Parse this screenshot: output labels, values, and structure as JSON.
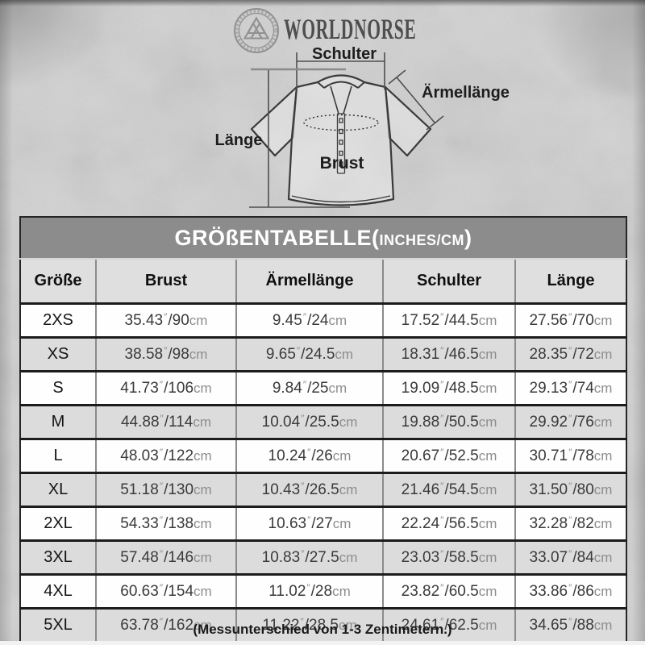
{
  "brand": {
    "name": "WORLDNORSE",
    "logo_icon": "valknut-ring-icon"
  },
  "diagram": {
    "schulter_label": "Schulter",
    "aermellaenge_label": "Ärmellänge",
    "laenge_label": "Länge",
    "brust_label": "Brust"
  },
  "table": {
    "title": {
      "main": "GRÖßENTABELLE",
      "open_paren": "(",
      "units": "INCHES/CM",
      "close_paren": ")"
    },
    "columns": [
      "Größe",
      "Brust",
      "Ärmellänge",
      "Schulter",
      "Länge"
    ],
    "inch_mark": "″",
    "cm_suffix": "cm",
    "rows": [
      {
        "size": "2XS",
        "measurements": [
          {
            "in": "35.43",
            "cm": "90"
          },
          {
            "in": "9.45",
            "cm": "24"
          },
          {
            "in": "17.52",
            "cm": "44.5"
          },
          {
            "in": "27.56",
            "cm": "70"
          }
        ]
      },
      {
        "size": "XS",
        "measurements": [
          {
            "in": "38.58",
            "cm": "98"
          },
          {
            "in": "9.65",
            "cm": "24.5"
          },
          {
            "in": "18.31",
            "cm": "46.5"
          },
          {
            "in": "28.35",
            "cm": "72"
          }
        ]
      },
      {
        "size": "S",
        "measurements": [
          {
            "in": "41.73",
            "cm": "106"
          },
          {
            "in": "9.84",
            "cm": "25"
          },
          {
            "in": "19.09",
            "cm": "48.5"
          },
          {
            "in": "29.13",
            "cm": "74"
          }
        ]
      },
      {
        "size": "M",
        "measurements": [
          {
            "in": "44.88",
            "cm": "114"
          },
          {
            "in": "10.04",
            "cm": "25.5"
          },
          {
            "in": "19.88",
            "cm": "50.5"
          },
          {
            "in": "29.92",
            "cm": "76"
          }
        ]
      },
      {
        "size": "L",
        "measurements": [
          {
            "in": "48.03",
            "cm": "122"
          },
          {
            "in": "10.24",
            "cm": "26"
          },
          {
            "in": "20.67",
            "cm": "52.5"
          },
          {
            "in": "30.71",
            "cm": "78"
          }
        ]
      },
      {
        "size": "XL",
        "measurements": [
          {
            "in": "51.18",
            "cm": "130"
          },
          {
            "in": "10.43",
            "cm": "26.5"
          },
          {
            "in": "21.46",
            "cm": "54.5"
          },
          {
            "in": "31.50",
            "cm": "80"
          }
        ]
      },
      {
        "size": "2XL",
        "measurements": [
          {
            "in": "54.33",
            "cm": "138"
          },
          {
            "in": "10.63",
            "cm": "27"
          },
          {
            "in": "22.24",
            "cm": "56.5"
          },
          {
            "in": "32.28",
            "cm": "82"
          }
        ]
      },
      {
        "size": "3XL",
        "measurements": [
          {
            "in": "57.48",
            "cm": "146"
          },
          {
            "in": "10.83",
            "cm": "27.5"
          },
          {
            "in": "23.03",
            "cm": "58.5"
          },
          {
            "in": "33.07",
            "cm": "84"
          }
        ]
      },
      {
        "size": "4XL",
        "measurements": [
          {
            "in": "60.63",
            "cm": "154"
          },
          {
            "in": "11.02",
            "cm": "28"
          },
          {
            "in": "23.82",
            "cm": "60.5"
          },
          {
            "in": "33.86",
            "cm": "86"
          }
        ]
      },
      {
        "size": "5XL",
        "measurements": [
          {
            "in": "63.78",
            "cm": "162"
          },
          {
            "in": "11.22",
            "cm": "28.5"
          },
          {
            "in": "24.61",
            "cm": "62.5"
          },
          {
            "in": "34.65",
            "cm": "88"
          }
        ]
      }
    ]
  },
  "footer": {
    "note": "(Messunterschied von 1-3 Zentimetern.)"
  },
  "colors": {
    "title_bar_bg": "#8c8c8c",
    "header_row_bg": "#dfdfdf",
    "row_alt_bg": "#dcdcdc",
    "row_white_bg": "#fefefe",
    "border_dark": "#1c1c1c",
    "number_text": "#3a3a3a",
    "unit_text": "#8d8d8d",
    "background": "#c9c9c9"
  },
  "chart_data": {
    "type": "table",
    "title": "GRÖßENTABELLE (INCHES/CM)",
    "columns": [
      "Größe",
      "Brust",
      "Ärmellänge",
      "Schulter",
      "Länge"
    ],
    "rows": [
      [
        "2XS",
        "35.43″/90cm",
        "9.45″/24cm",
        "17.52″/44.5cm",
        "27.56″/70cm"
      ],
      [
        "XS",
        "38.58″/98cm",
        "9.65″/24.5cm",
        "18.31″/46.5cm",
        "28.35″/72cm"
      ],
      [
        "S",
        "41.73″/106cm",
        "9.84″/25cm",
        "19.09″/48.5cm",
        "29.13″/74cm"
      ],
      [
        "M",
        "44.88″/114cm",
        "10.04″/25.5cm",
        "19.88″/50.5cm",
        "29.92″/76cm"
      ],
      [
        "L",
        "48.03″/122cm",
        "10.24″/26cm",
        "20.67″/52.5cm",
        "30.71″/78cm"
      ],
      [
        "XL",
        "51.18″/130cm",
        "10.43″/26.5cm",
        "21.46″/54.5cm",
        "31.50″/80cm"
      ],
      [
        "2XL",
        "54.33″/138cm",
        "10.63″/27cm",
        "22.24″/56.5cm",
        "32.28″/82cm"
      ],
      [
        "3XL",
        "57.48″/146cm",
        "10.83″/27.5cm",
        "23.03″/58.5cm",
        "33.07″/84cm"
      ],
      [
        "4XL",
        "60.63″/154cm",
        "11.02″/28cm",
        "23.82″/60.5cm",
        "33.86″/86cm"
      ],
      [
        "5XL",
        "63.78″/162cm",
        "11.22″/28.5cm",
        "24.61″/62.5cm",
        "34.65″/88cm"
      ]
    ]
  }
}
